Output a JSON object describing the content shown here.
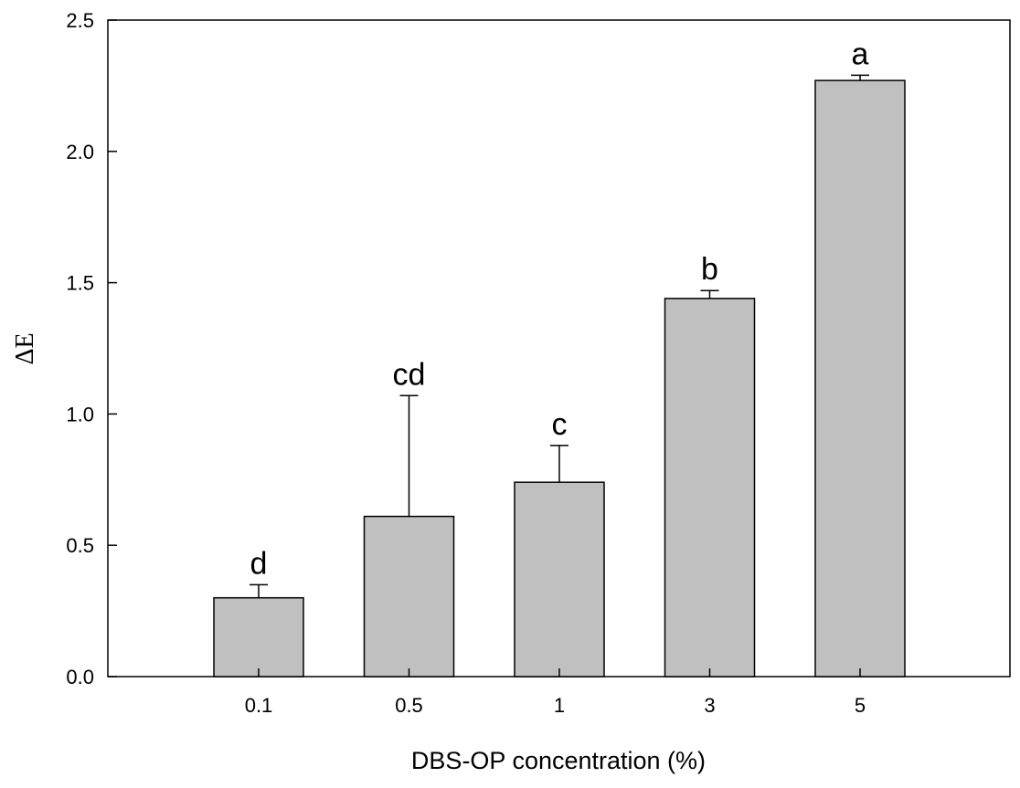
{
  "chart_data": {
    "type": "bar",
    "title": "",
    "xlabel": "DBS-OP concentration (%)",
    "ylabel": "ΔE",
    "categories": [
      "0.1",
      "0.5",
      "1",
      "3",
      "5"
    ],
    "values": [
      0.3,
      0.61,
      0.74,
      1.44,
      2.27
    ],
    "error_upper": [
      0.35,
      1.07,
      0.88,
      1.47,
      2.29
    ],
    "significance_labels": [
      "d",
      "cd",
      "c",
      "b",
      "a"
    ],
    "ylim": [
      0,
      2.5
    ],
    "yticks": [
      "0.0",
      "0.5",
      "1.0",
      "1.5",
      "2.0",
      "2.5"
    ],
    "grid": false,
    "bar_color": "#c0c0c0",
    "edge_color": "#000000"
  }
}
